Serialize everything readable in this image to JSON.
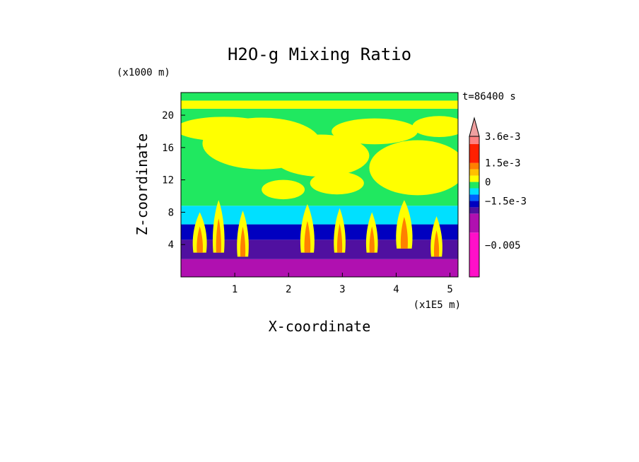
{
  "chart_data": {
    "type": "heatmap",
    "title": "H2O-g Mixing Ratio",
    "xlabel": "X-coordinate",
    "ylabel": "Z-coordinate",
    "x_scale_note": "(x1E5 m)",
    "y_scale_note": "(x1000 m)",
    "time_label": "t=86400 s",
    "xlim": [
      0,
      5.15
    ],
    "ylim": [
      0,
      22.8
    ],
    "x_ticks": [
      {
        "value": 1,
        "label": "1"
      },
      {
        "value": 2,
        "label": "2"
      },
      {
        "value": 3,
        "label": "3"
      },
      {
        "value": 4,
        "label": "4"
      },
      {
        "value": 5,
        "label": "5"
      }
    ],
    "y_ticks": [
      {
        "value": 4,
        "label": "4"
      },
      {
        "value": 8,
        "label": "8"
      },
      {
        "value": 12,
        "label": "12"
      },
      {
        "value": 16,
        "label": "16"
      },
      {
        "value": 20,
        "label": "20"
      }
    ],
    "colorbar": {
      "levels": [
        {
          "color": "#ff10c8",
          "from": -0.0075,
          "to": -0.004
        },
        {
          "color": "#b010b0",
          "from": -0.004,
          "to": -0.0025
        },
        {
          "color": "#5010a0",
          "from": -0.0025,
          "to": -0.002
        },
        {
          "color": "#0000c0",
          "from": -0.002,
          "to": -0.0015
        },
        {
          "color": "#0060ff",
          "from": -0.0015,
          "to": -0.001
        },
        {
          "color": "#00e0ff",
          "from": -0.001,
          "to": -0.0005
        },
        {
          "color": "#20e860",
          "from": -0.0005,
          "to": 0.0
        },
        {
          "color": "#ffff00",
          "from": 0.0,
          "to": 0.0005
        },
        {
          "color": "#ffc000",
          "from": 0.0005,
          "to": 0.001
        },
        {
          "color": "#ff8000",
          "from": 0.001,
          "to": 0.0015
        },
        {
          "color": "#ff2000",
          "from": 0.0015,
          "to": 0.003
        },
        {
          "color": "#ff8080",
          "from": 0.003,
          "to": 0.0036
        }
      ],
      "overflow_color": "#f0a0a0",
      "tick_labels": [
        {
          "value": 0.0036,
          "label": "3.6e-3"
        },
        {
          "value": 0.0015,
          "label": "1.5e-3"
        },
        {
          "value": 0.0,
          "label": "0"
        },
        {
          "value": -0.0015,
          "label": "−1.5e-3"
        },
        {
          "value": -0.005,
          "label": "−0.005"
        }
      ]
    },
    "layers": [
      {
        "band": [
          0,
          2.2
        ],
        "color": "#b010b0"
      },
      {
        "band": [
          2.2,
          4.6
        ],
        "color": "#5010a0"
      },
      {
        "band": [
          4.6,
          6.5
        ],
        "color": "#0000c0"
      },
      {
        "band": [
          6.5,
          8.8
        ],
        "color": "#00e0ff"
      },
      {
        "band": [
          8.8,
          20.8
        ],
        "color": "#20e860"
      },
      {
        "band": [
          20.8,
          21.8
        ],
        "color": "#ffff00"
      },
      {
        "band": [
          21.8,
          22.8
        ],
        "color": "#20e860"
      }
    ],
    "yellow_blobs": [
      {
        "x": 1.5,
        "y": 16.5,
        "rx": 1.1,
        "ry": 3.2
      },
      {
        "x": 2.6,
        "y": 15.0,
        "rx": 0.9,
        "ry": 2.6
      },
      {
        "x": 4.4,
        "y": 13.5,
        "rx": 0.9,
        "ry": 3.4
      },
      {
        "x": 0.8,
        "y": 18.3,
        "rx": 0.9,
        "ry": 1.5
      },
      {
        "x": 3.6,
        "y": 18.0,
        "rx": 0.8,
        "ry": 1.6
      },
      {
        "x": 4.8,
        "y": 18.6,
        "rx": 0.5,
        "ry": 1.3
      },
      {
        "x": 2.9,
        "y": 11.6,
        "rx": 0.5,
        "ry": 1.4
      },
      {
        "x": 1.9,
        "y": 10.8,
        "rx": 0.4,
        "ry": 1.2
      }
    ],
    "plumes": [
      {
        "x": 0.35,
        "base": 3.0,
        "top": 8.0,
        "width": 0.12
      },
      {
        "x": 0.7,
        "base": 3.0,
        "top": 9.5,
        "width": 0.1
      },
      {
        "x": 1.15,
        "base": 2.5,
        "top": 8.2,
        "width": 0.1
      },
      {
        "x": 2.35,
        "base": 3.0,
        "top": 9.0,
        "width": 0.12
      },
      {
        "x": 2.95,
        "base": 3.0,
        "top": 8.5,
        "width": 0.1
      },
      {
        "x": 3.55,
        "base": 3.0,
        "top": 8.0,
        "width": 0.1
      },
      {
        "x": 4.15,
        "base": 3.5,
        "top": 9.5,
        "width": 0.14
      },
      {
        "x": 4.75,
        "base": 2.5,
        "top": 7.5,
        "width": 0.1
      }
    ]
  }
}
